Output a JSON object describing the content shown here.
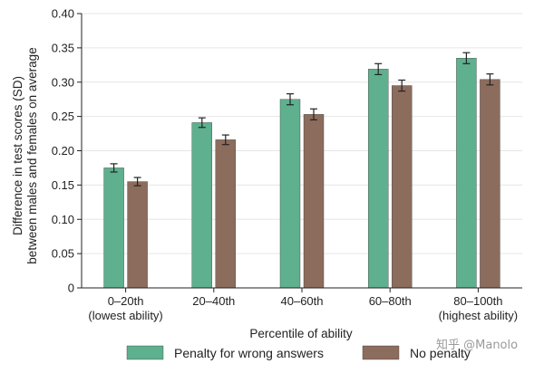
{
  "chart_data": {
    "type": "bar",
    "xlabel": "Percentile of ability",
    "ylabel_lines": [
      "Difference in test scores (SD)",
      "between males and females on average"
    ],
    "ylim": [
      0,
      0.4
    ],
    "yticks": [
      "0",
      "0.05",
      "0.10",
      "0.15",
      "0.20",
      "0.25",
      "0.30",
      "0.35",
      "0.40"
    ],
    "ytick_values": [
      0,
      0.05,
      0.1,
      0.15,
      0.2,
      0.25,
      0.3,
      0.35,
      0.4
    ],
    "categories": [
      [
        "0–20th",
        "(lowest ability)"
      ],
      [
        "20–40th"
      ],
      [
        "40–60th"
      ],
      [
        "60–80th"
      ],
      [
        "80–100th",
        "(highest ability)"
      ]
    ],
    "series": [
      {
        "name": "Penalty for wrong answers",
        "color": "#5eb08e",
        "values": [
          0.175,
          0.241,
          0.275,
          0.319,
          0.335
        ],
        "errors": [
          0.006,
          0.007,
          0.008,
          0.008,
          0.008
        ]
      },
      {
        "name": "No penalty",
        "color": "#8c6c5c",
        "values": [
          0.155,
          0.216,
          0.253,
          0.295,
          0.304
        ],
        "errors": [
          0.006,
          0.007,
          0.008,
          0.008,
          0.008
        ]
      }
    ],
    "grid": "horizontal",
    "legend_position": "bottom"
  },
  "watermark": "知乎 @Manolo"
}
